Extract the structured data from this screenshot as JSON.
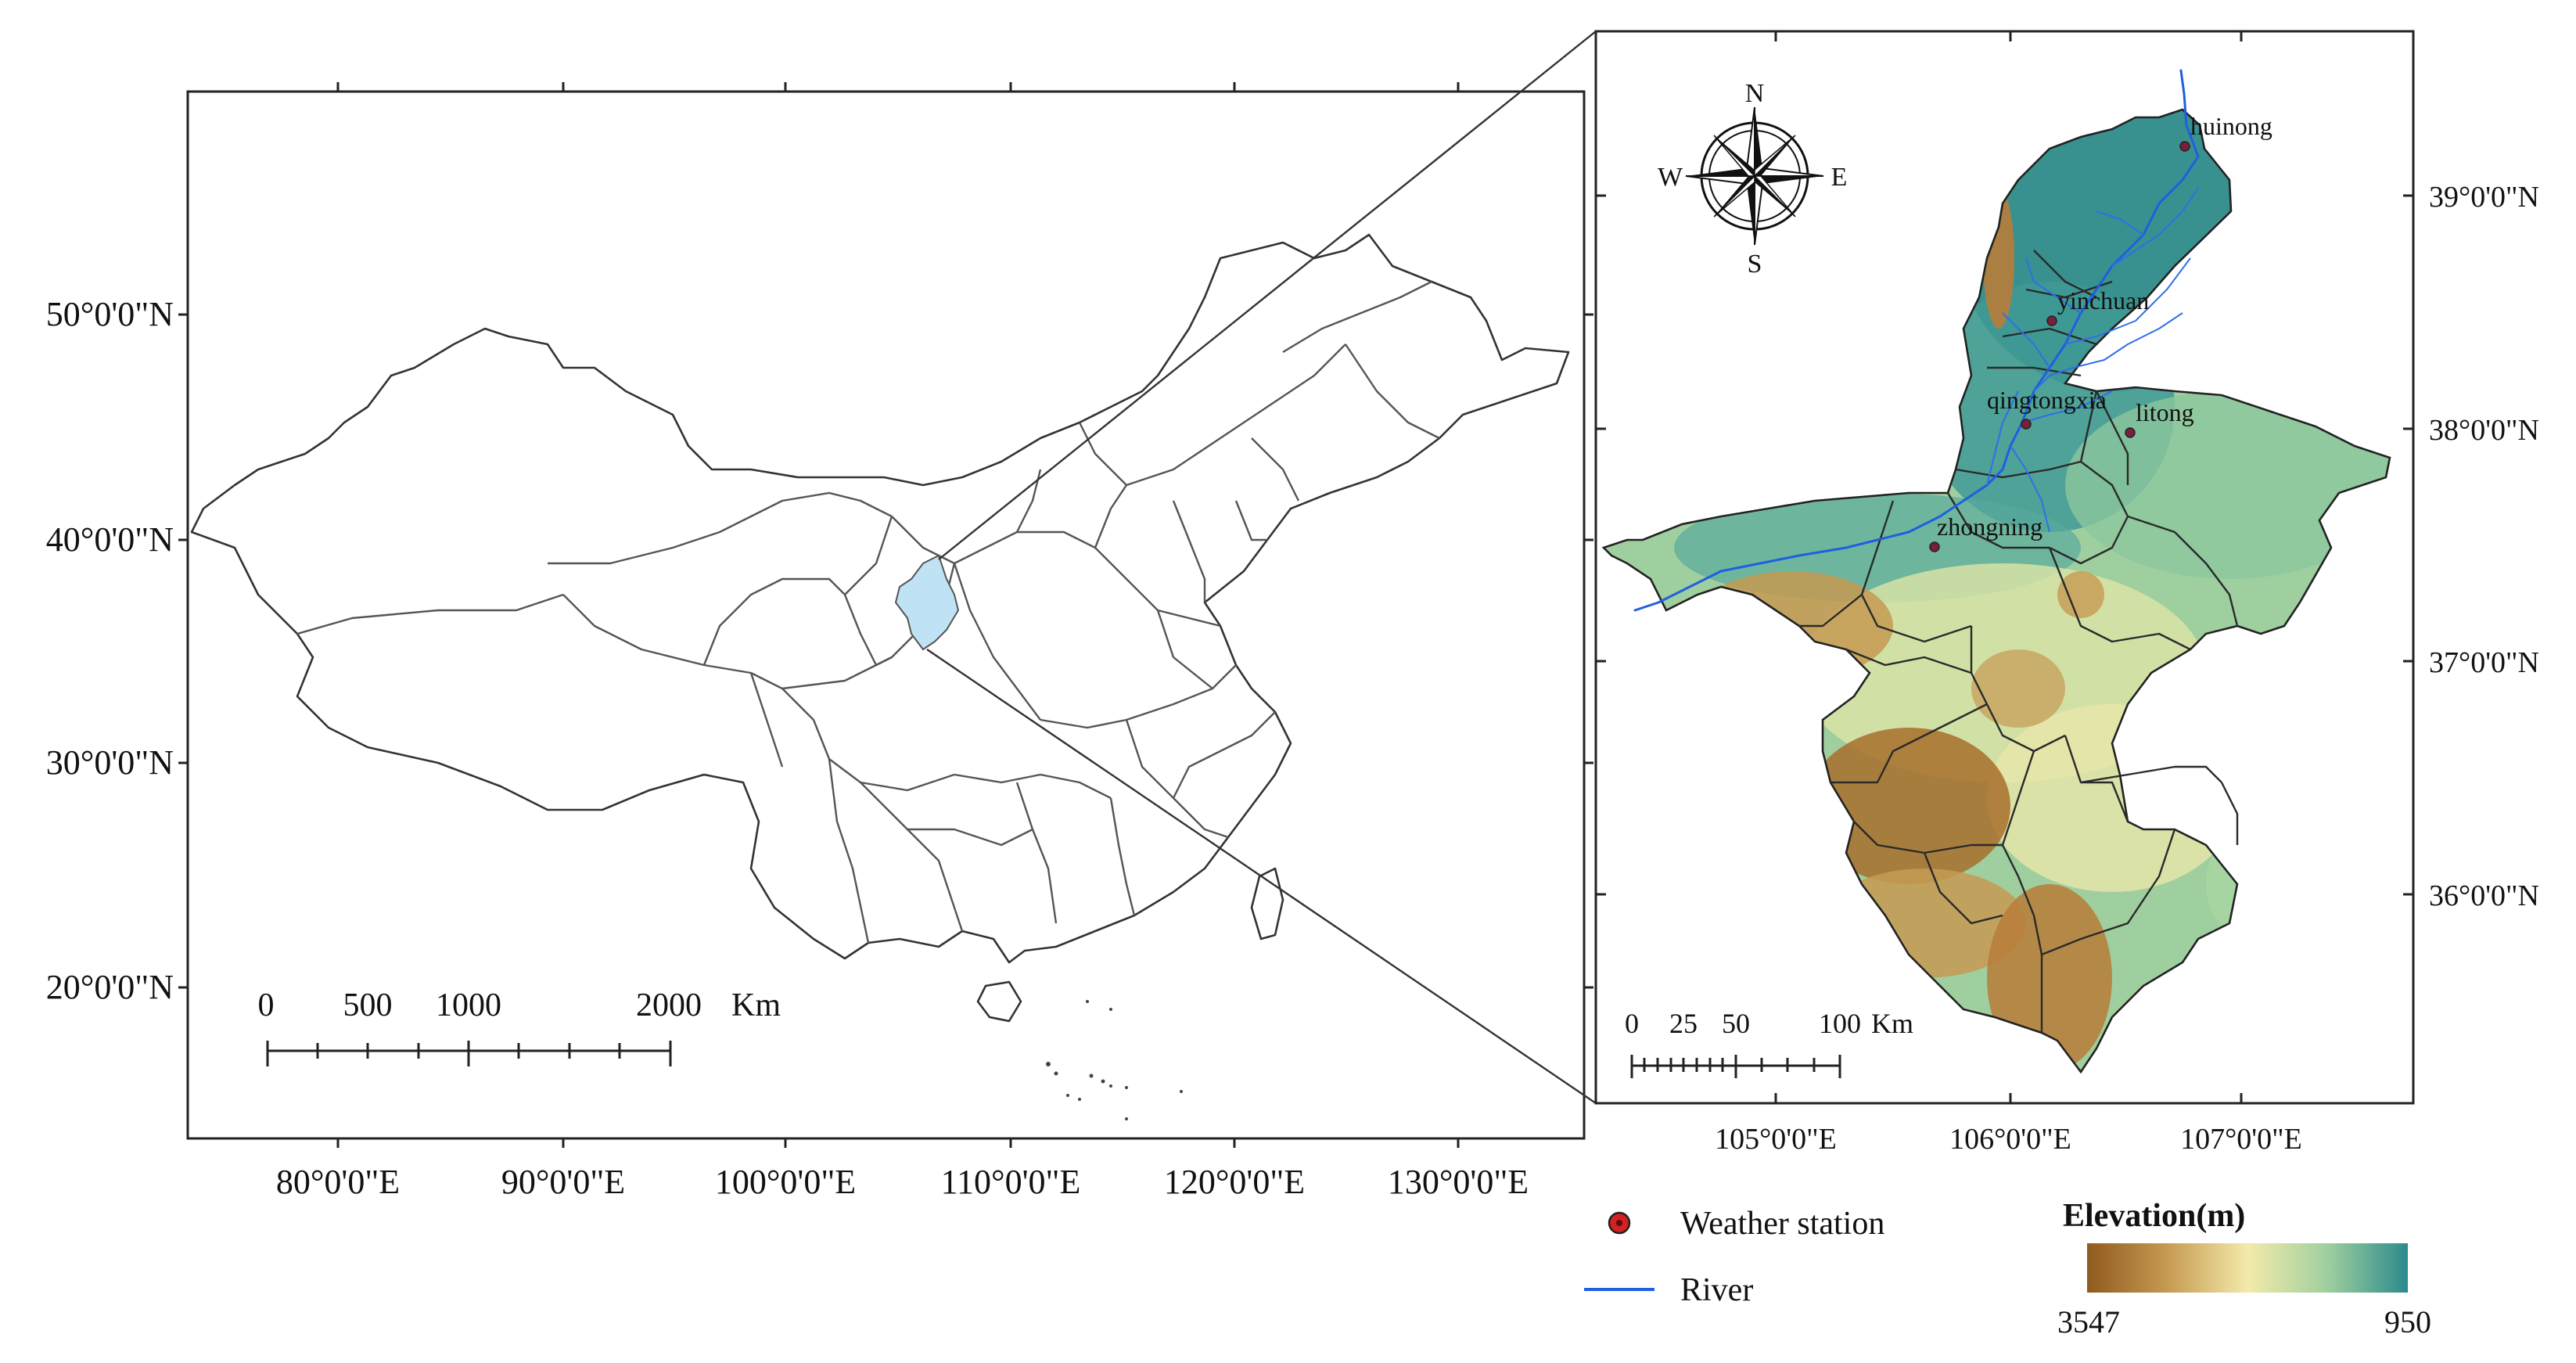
{
  "colors": {
    "elev_high": "#8f5a1e",
    "elev_mid_high": "#c69a52",
    "elev_mid": "#f3eaaa",
    "elev_mid_low": "#9fcf9f",
    "elev_low": "#2c8a8c",
    "ningxia_highlight": "#bfe3f5",
    "river": "#1f5fe0",
    "station": "#d32020"
  },
  "overview_map": {
    "lat_labels": [
      "50°0'0\"N",
      "40°0'0\"N",
      "30°0'0\"N",
      "20°0'0\"N"
    ],
    "lon_labels": [
      "80°0'0\"E",
      "90°0'0\"E",
      "100°0'0\"E",
      "110°0'0\"E",
      "120°0'0\"E",
      "130°0'0\"E"
    ],
    "scalebar": {
      "ticks": [
        "0",
        "500",
        "1000",
        "2000"
      ],
      "unit": "Km"
    }
  },
  "inset_map": {
    "lat_labels": [
      "39°0'0\"N",
      "38°0'0\"N",
      "37°0'0\"N",
      "36°0'0\"N"
    ],
    "lon_labels": [
      "105°0'0\"E",
      "106°0'0\"E",
      "107°0'0\"E"
    ],
    "compass": {
      "n": "N",
      "s": "S",
      "e": "E",
      "w": "W"
    },
    "scalebar": {
      "ticks": [
        "0",
        "25",
        "50",
        "100"
      ],
      "unit": "Km"
    },
    "stations": [
      "huinong",
      "yinchuan",
      "qingtongxia",
      "litong",
      "zhongning"
    ]
  },
  "legend": {
    "station_label": "Weather station",
    "river_label": "River",
    "elevation_title": "Elevation(m)",
    "elevation_min_label": "3547",
    "elevation_max_label": "950"
  }
}
